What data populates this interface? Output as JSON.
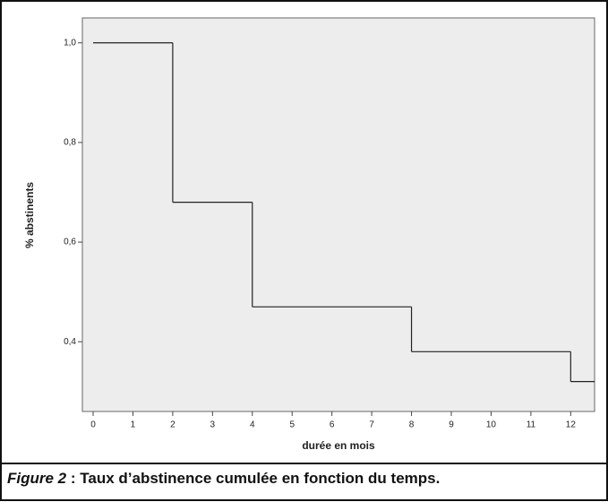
{
  "chart_data": {
    "type": "step",
    "x_label": "durée en mois",
    "y_label": "% abstinents",
    "x": [
      0,
      2,
      4,
      8,
      12,
      12.6
    ],
    "values": [
      1.0,
      0.68,
      0.47,
      0.38,
      0.32,
      0.32
    ],
    "color": "#222222",
    "xlim": [
      -0.27,
      12.6
    ],
    "ylim": [
      0.26,
      1.05
    ],
    "xticks": [
      0,
      1,
      2,
      3,
      4,
      5,
      6,
      7,
      8,
      9,
      10,
      11,
      12
    ],
    "yticks": [
      {
        "value": 0.4,
        "label": "0,4"
      },
      {
        "value": 0.6,
        "label": "0,6"
      },
      {
        "value": 0.8,
        "label": "0,8"
      },
      {
        "value": 1.0,
        "label": "1,0"
      }
    ],
    "caption_label": "Figure 2",
    "caption": ": Taux d’abstinence cumulée en fonction du temps."
  }
}
